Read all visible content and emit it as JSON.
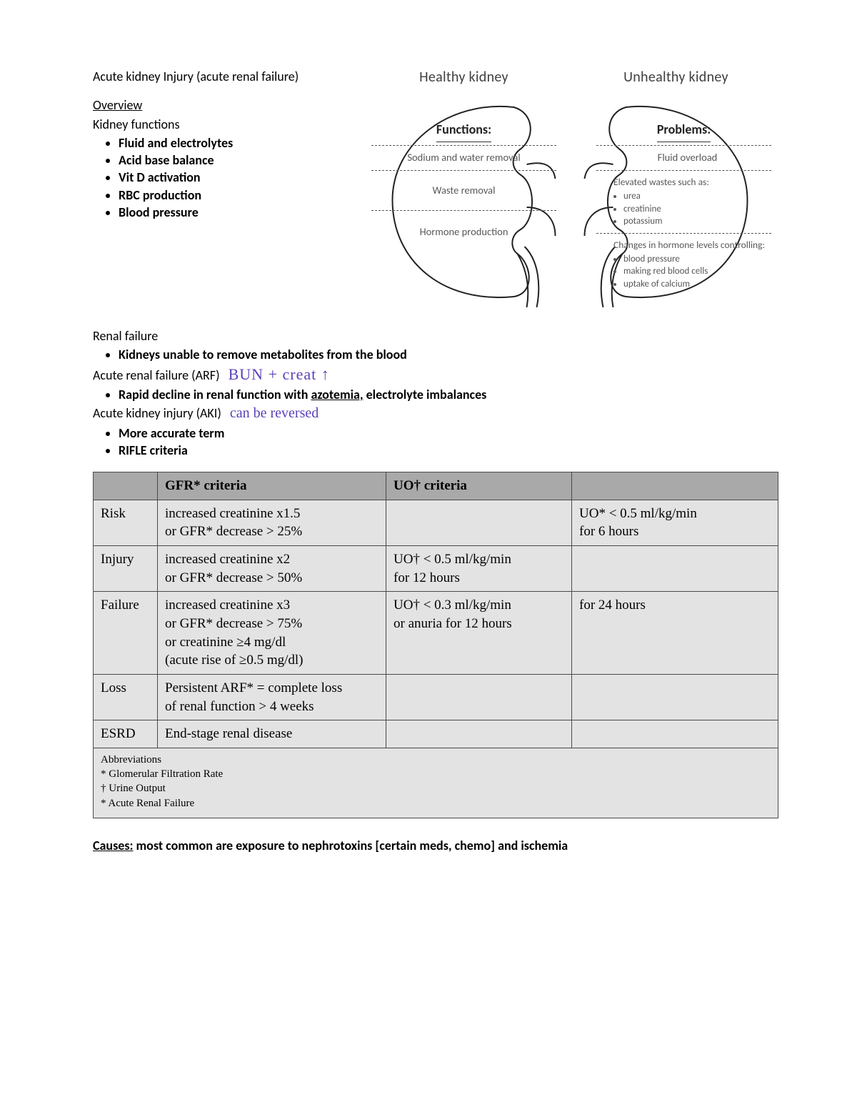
{
  "title": "Acute kidney Injury (acute renal failure)",
  "overview_heading": "Overview",
  "kidney_functions_heading": "Kidney functions",
  "kidney_functions": [
    "Fluid and electrolytes",
    "Acid base balance",
    "Vit D activation",
    "RBC production",
    "Blood pressure"
  ],
  "diagram": {
    "healthy_label": "Healthy kidney",
    "unhealthy_label": "Unhealthy kidney",
    "healthy": {
      "heading": "Functions:",
      "rows": [
        "Sodium and water removal",
        "Waste removal",
        "Hormone production"
      ]
    },
    "unhealthy": {
      "heading": "Problems:",
      "row1": "Fluid overload",
      "row2_intro": "Elevated wastes such as:",
      "row2_items": [
        "urea",
        "creatinine",
        "potassium"
      ],
      "row3_intro": "Changes in hormone levels controlling:",
      "row3_items": [
        "blood pressure",
        "making red blood cells",
        "uptake of calcium"
      ]
    },
    "stroke": "#222222",
    "dash": "#555555",
    "text_color": "#585858"
  },
  "renal_failure_heading": "Renal failure",
  "renal_failure_bullet_pre": "Kidneys unable to remove ",
  "renal_failure_bullet_bold": "metabolites",
  "renal_failure_bullet_post": " from the blood",
  "handwritten1": "BUN + creat ↑",
  "arf_heading": "Acute renal failure (ARF)",
  "arf_bullet_pre": "Rapid decline in renal function with ",
  "arf_bullet_under1": "azotemia,",
  "arf_bullet_bold2": " electrolyte imbalances",
  "aki_heading": "Acute kidney injury (AKI)",
  "handwritten2": "can be reversed",
  "aki_bullets": [
    "More accurate term",
    "RIFLE criteria"
  ],
  "table": {
    "headers": {
      "c0": "",
      "c1": "GFR* criteria",
      "c2": "UO† criteria",
      "c3": ""
    },
    "rows": [
      {
        "c0": "Risk",
        "c1": "increased creatinine x1.5\nor GFR* decrease > 25%",
        "c2": "",
        "c3": "UO* < 0.5 ml/kg/min\nfor 6 hours"
      },
      {
        "c0": "Injury",
        "c1": "increased creatinine x2\nor GFR* decrease > 50%",
        "c2": "UO† < 0.5 ml/kg/min\nfor 12 hours",
        "c3": ""
      },
      {
        "c0": "Failure",
        "c1": "increased creatinine x3\nor GFR* decrease > 75%\nor creatinine ≥4 mg/dl\n(acute rise of ≥0.5 mg/dl)",
        "c2": "UO† < 0.3 ml/kg/min\nor anuria for 12 hours",
        "c3": "for 24 hours"
      },
      {
        "c0": "Loss",
        "c1": "Persistent ARF* = complete loss\nof renal function > 4 weeks",
        "c2": "",
        "c3": ""
      },
      {
        "c0": "ESRD",
        "c1": "End-stage renal disease",
        "c2": "",
        "c3": ""
      }
    ],
    "footer": "Abbreviations\n* Glomerular Filtration Rate\n† Urine Output\n* Acute Renal Failure",
    "header_bg": "#a9a9a9",
    "cell_bg": "#e3e3e3",
    "border_color": "#4a4a4a"
  },
  "causes_label": "Causes:",
  "causes_text": " most common are exposure to nephrotoxins [certain meds, chemo] and ischemia",
  "colors": {
    "page_bg": "#ffffff",
    "text": "#000000",
    "handwriting": "#5b3fb8"
  }
}
